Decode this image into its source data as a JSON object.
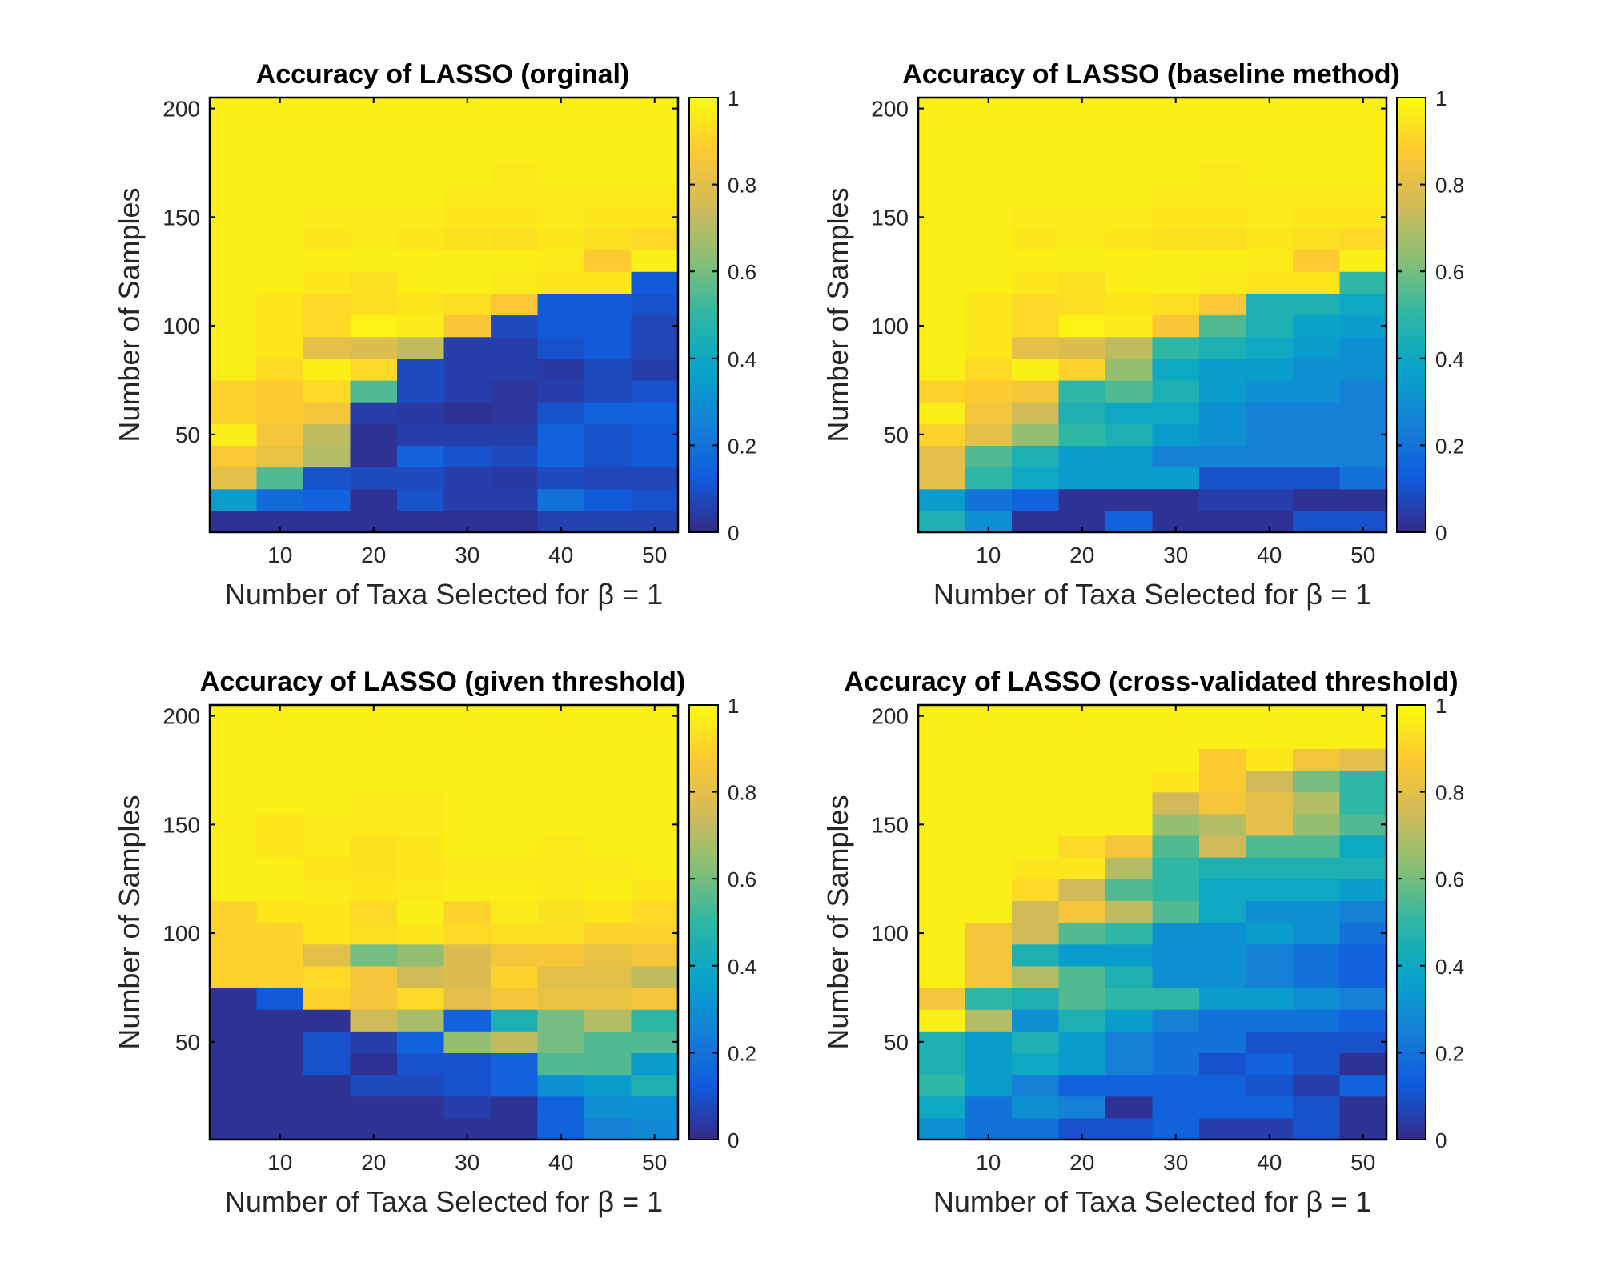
{
  "figure": {
    "colormap": "parula",
    "colors": {
      "parula": [
        "#352a87",
        "#0f5cdd",
        "#1481d6",
        "#06a4ca",
        "#2eb7a4",
        "#87bf77",
        "#d1bb59",
        "#fec832",
        "#f9fb0e"
      ]
    }
  },
  "chart_data": [
    {
      "type": "heatmap",
      "title": "Accuracy of LASSO (orginal)",
      "xlabel": "Number of Taxa Selected for β = 1",
      "ylabel": "Number of Samples",
      "x": [
        5,
        10,
        15,
        20,
        25,
        30,
        35,
        40,
        45,
        50
      ],
      "y": [
        10,
        20,
        30,
        40,
        50,
        60,
        70,
        80,
        90,
        100,
        110,
        120,
        130,
        140,
        150,
        160,
        170,
        180,
        190,
        200
      ],
      "xlim": [
        2.5,
        52.5
      ],
      "ylim": [
        5,
        205
      ],
      "xticks": [
        "10",
        "20",
        "30",
        "40",
        "50"
      ],
      "yticks": [
        "50",
        "100",
        "150",
        "200"
      ],
      "colorbar": {
        "ticks": [
          "0",
          "0.2",
          "0.4",
          "0.6",
          "0.8",
          "1"
        ],
        "clim": [
          0,
          1
        ]
      },
      "values": [
        [
          0.02,
          0.02,
          0.02,
          0.02,
          0.02,
          0.02,
          0.02,
          0.06,
          0.06,
          0.06
        ],
        [
          0.35,
          0.18,
          0.15,
          0.02,
          0.1,
          0.05,
          0.05,
          0.2,
          0.12,
          0.1
        ],
        [
          0.8,
          0.55,
          0.1,
          0.08,
          0.08,
          0.05,
          0.04,
          0.08,
          0.07,
          0.07
        ],
        [
          0.87,
          0.82,
          0.7,
          0.02,
          0.15,
          0.1,
          0.08,
          0.15,
          0.1,
          0.12
        ],
        [
          0.97,
          0.85,
          0.72,
          0.02,
          0.05,
          0.05,
          0.05,
          0.15,
          0.1,
          0.12
        ],
        [
          0.9,
          0.88,
          0.85,
          0.05,
          0.04,
          0.02,
          0.03,
          0.1,
          0.15,
          0.15
        ],
        [
          0.9,
          0.88,
          0.92,
          0.55,
          0.08,
          0.05,
          0.03,
          0.05,
          0.08,
          0.1
        ],
        [
          0.97,
          0.92,
          0.97,
          0.92,
          0.08,
          0.05,
          0.05,
          0.04,
          0.08,
          0.05
        ],
        [
          0.97,
          0.95,
          0.8,
          0.78,
          0.72,
          0.05,
          0.05,
          0.1,
          0.12,
          0.07
        ],
        [
          0.97,
          0.95,
          0.92,
          0.98,
          0.96,
          0.86,
          0.08,
          0.12,
          0.12,
          0.07
        ],
        [
          0.97,
          0.95,
          0.92,
          0.93,
          0.95,
          0.93,
          0.87,
          0.12,
          0.12,
          0.1
        ],
        [
          0.97,
          0.97,
          0.95,
          0.93,
          0.97,
          0.97,
          0.96,
          0.95,
          0.95,
          0.12
        ],
        [
          0.97,
          0.97,
          0.97,
          0.97,
          0.97,
          0.97,
          0.97,
          0.96,
          0.88,
          0.97
        ],
        [
          0.97,
          0.97,
          0.95,
          0.96,
          0.95,
          0.94,
          0.93,
          0.95,
          0.93,
          0.92
        ],
        [
          0.97,
          0.97,
          0.96,
          0.96,
          0.96,
          0.95,
          0.95,
          0.96,
          0.95,
          0.95
        ],
        [
          0.97,
          0.97,
          0.97,
          0.97,
          0.97,
          0.96,
          0.96,
          0.96,
          0.96,
          0.96
        ],
        [
          0.97,
          0.97,
          0.97,
          0.97,
          0.97,
          0.97,
          0.96,
          0.97,
          0.97,
          0.97
        ],
        [
          0.97,
          0.97,
          0.97,
          0.97,
          0.97,
          0.97,
          0.97,
          0.97,
          0.97,
          0.97
        ],
        [
          0.97,
          0.97,
          0.97,
          0.97,
          0.97,
          0.97,
          0.97,
          0.97,
          0.97,
          0.97
        ],
        [
          0.97,
          0.97,
          0.97,
          0.97,
          0.97,
          0.97,
          0.97,
          0.97,
          0.97,
          0.97
        ]
      ]
    },
    {
      "type": "heatmap",
      "title": "Accuracy of LASSO (baseline method)",
      "xlabel": "Number of Taxa Selected for β = 1",
      "ylabel": "Number of Samples",
      "x": [
        5,
        10,
        15,
        20,
        25,
        30,
        35,
        40,
        45,
        50
      ],
      "y": [
        10,
        20,
        30,
        40,
        50,
        60,
        70,
        80,
        90,
        100,
        110,
        120,
        130,
        140,
        150,
        160,
        170,
        180,
        190,
        200
      ],
      "xlim": [
        2.5,
        52.5
      ],
      "ylim": [
        5,
        205
      ],
      "xticks": [
        "10",
        "20",
        "30",
        "40",
        "50"
      ],
      "yticks": [
        "50",
        "100",
        "150",
        "200"
      ],
      "colorbar": {
        "ticks": [
          "0",
          "0.2",
          "0.4",
          "0.6",
          "0.8",
          "1"
        ],
        "clim": [
          0,
          1
        ]
      },
      "values": [
        [
          0.45,
          0.3,
          0.02,
          0.02,
          0.15,
          0.02,
          0.02,
          0.02,
          0.1,
          0.1
        ],
        [
          0.35,
          0.2,
          0.15,
          0.02,
          0.02,
          0.02,
          0.05,
          0.05,
          0.02,
          0.02
        ],
        [
          0.8,
          0.5,
          0.4,
          0.35,
          0.35,
          0.35,
          0.1,
          0.1,
          0.1,
          0.2
        ],
        [
          0.8,
          0.55,
          0.45,
          0.35,
          0.35,
          0.25,
          0.25,
          0.25,
          0.25,
          0.25
        ],
        [
          0.9,
          0.8,
          0.65,
          0.5,
          0.45,
          0.35,
          0.3,
          0.25,
          0.25,
          0.25
        ],
        [
          0.97,
          0.85,
          0.75,
          0.45,
          0.4,
          0.4,
          0.3,
          0.25,
          0.25,
          0.25
        ],
        [
          0.9,
          0.88,
          0.85,
          0.5,
          0.55,
          0.45,
          0.35,
          0.3,
          0.3,
          0.25
        ],
        [
          0.97,
          0.92,
          0.97,
          0.9,
          0.65,
          0.4,
          0.35,
          0.35,
          0.3,
          0.3
        ],
        [
          0.97,
          0.95,
          0.8,
          0.78,
          0.72,
          0.5,
          0.45,
          0.4,
          0.35,
          0.3
        ],
        [
          0.97,
          0.95,
          0.92,
          0.98,
          0.96,
          0.86,
          0.55,
          0.45,
          0.38,
          0.35
        ],
        [
          0.97,
          0.95,
          0.92,
          0.93,
          0.95,
          0.93,
          0.87,
          0.45,
          0.45,
          0.4
        ],
        [
          0.97,
          0.97,
          0.95,
          0.93,
          0.97,
          0.97,
          0.96,
          0.95,
          0.95,
          0.5
        ],
        [
          0.97,
          0.97,
          0.97,
          0.97,
          0.97,
          0.97,
          0.97,
          0.96,
          0.88,
          0.97
        ],
        [
          0.97,
          0.97,
          0.95,
          0.96,
          0.95,
          0.94,
          0.93,
          0.95,
          0.93,
          0.92
        ],
        [
          0.97,
          0.97,
          0.96,
          0.96,
          0.96,
          0.95,
          0.95,
          0.96,
          0.95,
          0.95
        ],
        [
          0.97,
          0.97,
          0.97,
          0.97,
          0.97,
          0.96,
          0.96,
          0.96,
          0.96,
          0.96
        ],
        [
          0.97,
          0.97,
          0.97,
          0.97,
          0.97,
          0.97,
          0.96,
          0.97,
          0.97,
          0.97
        ],
        [
          0.97,
          0.97,
          0.97,
          0.97,
          0.97,
          0.97,
          0.97,
          0.97,
          0.97,
          0.97
        ],
        [
          0.97,
          0.97,
          0.97,
          0.97,
          0.97,
          0.97,
          0.97,
          0.97,
          0.97,
          0.97
        ],
        [
          0.97,
          0.97,
          0.97,
          0.97,
          0.97,
          0.97,
          0.97,
          0.97,
          0.97,
          0.97
        ]
      ]
    },
    {
      "type": "heatmap",
      "title": "Accuracy of LASSO (given threshold)",
      "xlabel": "Number of Taxa Selected for β = 1",
      "ylabel": "Number of Samples",
      "x": [
        5,
        10,
        15,
        20,
        25,
        30,
        35,
        40,
        45,
        50
      ],
      "y": [
        10,
        20,
        30,
        40,
        50,
        60,
        70,
        80,
        90,
        100,
        110,
        120,
        130,
        140,
        150,
        160,
        170,
        180,
        190,
        200
      ],
      "xlim": [
        2.5,
        52.5
      ],
      "ylim": [
        5,
        205
      ],
      "xticks": [
        "10",
        "20",
        "30",
        "40",
        "50"
      ],
      "yticks": [
        "50",
        "100",
        "150",
        "200"
      ],
      "colorbar": {
        "ticks": [
          "0",
          "0.2",
          "0.4",
          "0.6",
          "0.8",
          "1"
        ],
        "clim": [
          0,
          1
        ]
      },
      "values": [
        [
          0.02,
          0.02,
          0.02,
          0.02,
          0.02,
          0.02,
          0.02,
          0.15,
          0.25,
          0.28
        ],
        [
          0.02,
          0.02,
          0.02,
          0.02,
          0.02,
          0.05,
          0.02,
          0.15,
          0.3,
          0.3
        ],
        [
          0.02,
          0.02,
          0.02,
          0.08,
          0.08,
          0.1,
          0.15,
          0.3,
          0.35,
          0.45
        ],
        [
          0.02,
          0.02,
          0.1,
          0.02,
          0.1,
          0.1,
          0.15,
          0.55,
          0.55,
          0.35
        ],
        [
          0.02,
          0.02,
          0.1,
          0.05,
          0.15,
          0.65,
          0.72,
          0.6,
          0.55,
          0.55
        ],
        [
          0.02,
          0.02,
          0.02,
          0.75,
          0.68,
          0.15,
          0.45,
          0.6,
          0.7,
          0.5
        ],
        [
          0.02,
          0.12,
          0.9,
          0.85,
          0.92,
          0.8,
          0.85,
          0.82,
          0.82,
          0.85
        ],
        [
          0.9,
          0.9,
          0.92,
          0.85,
          0.75,
          0.78,
          0.9,
          0.8,
          0.8,
          0.72
        ],
        [
          0.9,
          0.9,
          0.8,
          0.6,
          0.65,
          0.78,
          0.85,
          0.86,
          0.82,
          0.85
        ],
        [
          0.9,
          0.9,
          0.95,
          0.93,
          0.95,
          0.92,
          0.93,
          0.93,
          0.9,
          0.9
        ],
        [
          0.9,
          0.95,
          0.95,
          0.92,
          0.97,
          0.9,
          0.96,
          0.94,
          0.95,
          0.92
        ],
        [
          0.97,
          0.97,
          0.96,
          0.95,
          0.96,
          0.97,
          0.97,
          0.96,
          0.97,
          0.95
        ],
        [
          0.97,
          0.97,
          0.95,
          0.94,
          0.95,
          0.96,
          0.96,
          0.96,
          0.96,
          0.97
        ],
        [
          0.97,
          0.95,
          0.96,
          0.94,
          0.95,
          0.97,
          0.97,
          0.96,
          0.97,
          0.97
        ],
        [
          0.97,
          0.95,
          0.96,
          0.96,
          0.96,
          0.97,
          0.97,
          0.97,
          0.97,
          0.97
        ],
        [
          0.97,
          0.97,
          0.97,
          0.96,
          0.96,
          0.97,
          0.97,
          0.97,
          0.97,
          0.97
        ],
        [
          0.97,
          0.97,
          0.97,
          0.97,
          0.97,
          0.97,
          0.97,
          0.97,
          0.97,
          0.97
        ],
        [
          0.97,
          0.97,
          0.97,
          0.97,
          0.97,
          0.97,
          0.97,
          0.97,
          0.97,
          0.97
        ],
        [
          0.97,
          0.97,
          0.97,
          0.97,
          0.97,
          0.97,
          0.97,
          0.97,
          0.97,
          0.97
        ],
        [
          0.97,
          0.97,
          0.97,
          0.97,
          0.97,
          0.97,
          0.97,
          0.97,
          0.97,
          0.97
        ]
      ]
    },
    {
      "type": "heatmap",
      "title": "Accuracy of LASSO (cross-validated threshold)",
      "xlabel": "Number of Taxa Selected for β = 1",
      "ylabel": "Number of Samples",
      "x": [
        5,
        10,
        15,
        20,
        25,
        30,
        35,
        40,
        45,
        50
      ],
      "y": [
        10,
        20,
        30,
        40,
        50,
        60,
        70,
        80,
        90,
        100,
        110,
        120,
        130,
        140,
        150,
        160,
        170,
        180,
        190,
        200
      ],
      "xlim": [
        2.5,
        52.5
      ],
      "ylim": [
        5,
        205
      ],
      "xticks": [
        "10",
        "20",
        "30",
        "40",
        "50"
      ],
      "yticks": [
        "50",
        "100",
        "150",
        "200"
      ],
      "colorbar": {
        "ticks": [
          "0",
          "0.2",
          "0.4",
          "0.6",
          "0.8",
          "1"
        ],
        "clim": [
          0,
          1
        ]
      },
      "values": [
        [
          0.3,
          0.2,
          0.2,
          0.1,
          0.1,
          0.15,
          0.05,
          0.05,
          0.1,
          0.02
        ],
        [
          0.4,
          0.2,
          0.3,
          0.25,
          0.02,
          0.15,
          0.15,
          0.15,
          0.1,
          0.02
        ],
        [
          0.5,
          0.35,
          0.25,
          0.15,
          0.15,
          0.15,
          0.15,
          0.1,
          0.05,
          0.15
        ],
        [
          0.45,
          0.35,
          0.4,
          0.35,
          0.25,
          0.2,
          0.1,
          0.15,
          0.1,
          0.02
        ],
        [
          0.45,
          0.35,
          0.45,
          0.35,
          0.25,
          0.2,
          0.2,
          0.1,
          0.1,
          0.1
        ],
        [
          0.97,
          0.7,
          0.3,
          0.45,
          0.35,
          0.25,
          0.2,
          0.2,
          0.2,
          0.15
        ],
        [
          0.85,
          0.5,
          0.45,
          0.55,
          0.5,
          0.5,
          0.35,
          0.35,
          0.3,
          0.25
        ],
        [
          0.97,
          0.85,
          0.7,
          0.55,
          0.45,
          0.3,
          0.3,
          0.25,
          0.2,
          0.15
        ],
        [
          0.97,
          0.85,
          0.45,
          0.35,
          0.35,
          0.3,
          0.3,
          0.25,
          0.2,
          0.15
        ],
        [
          0.97,
          0.85,
          0.75,
          0.55,
          0.5,
          0.3,
          0.3,
          0.35,
          0.3,
          0.2
        ],
        [
          0.97,
          0.97,
          0.75,
          0.85,
          0.72,
          0.55,
          0.4,
          0.3,
          0.3,
          0.25
        ],
        [
          0.97,
          0.97,
          0.92,
          0.75,
          0.55,
          0.5,
          0.4,
          0.4,
          0.4,
          0.35
        ],
        [
          0.97,
          0.97,
          0.95,
          0.95,
          0.7,
          0.5,
          0.45,
          0.45,
          0.45,
          0.45
        ],
        [
          0.97,
          0.97,
          0.97,
          0.92,
          0.85,
          0.55,
          0.75,
          0.55,
          0.55,
          0.4
        ],
        [
          0.97,
          0.97,
          0.97,
          0.97,
          0.97,
          0.65,
          0.7,
          0.8,
          0.65,
          0.55
        ],
        [
          0.97,
          0.97,
          0.97,
          0.97,
          0.97,
          0.75,
          0.85,
          0.8,
          0.7,
          0.5
        ],
        [
          0.97,
          0.97,
          0.97,
          0.97,
          0.97,
          0.95,
          0.88,
          0.75,
          0.6,
          0.5
        ],
        [
          0.97,
          0.97,
          0.97,
          0.97,
          0.97,
          0.97,
          0.88,
          0.95,
          0.85,
          0.8
        ],
        [
          0.97,
          0.97,
          0.97,
          0.97,
          0.97,
          0.97,
          0.97,
          0.97,
          0.97,
          0.97
        ],
        [
          0.97,
          0.97,
          0.97,
          0.97,
          0.97,
          0.97,
          0.97,
          0.97,
          0.97,
          0.97
        ]
      ]
    }
  ]
}
